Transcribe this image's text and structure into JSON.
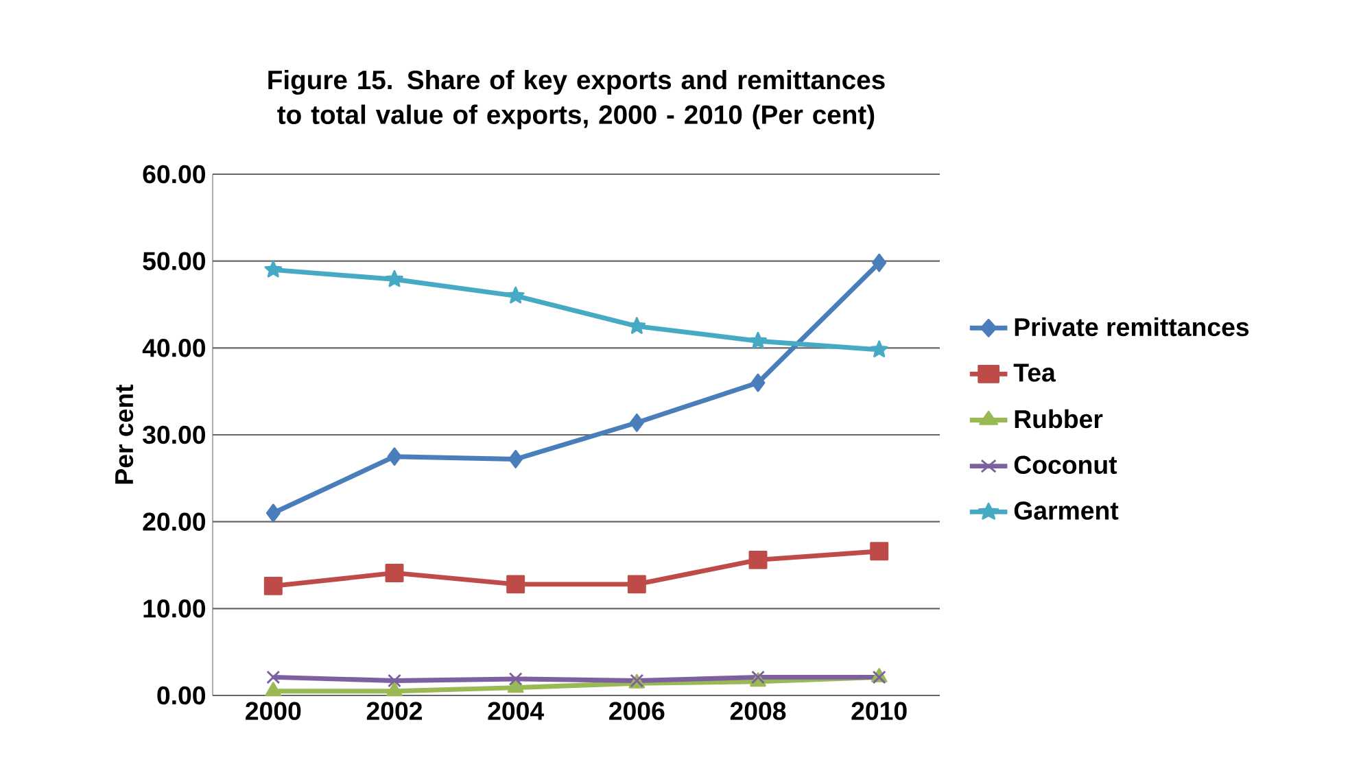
{
  "chart_data": {
    "type": "line",
    "title": "Figure 15. Share of key exports and remittances to total value of exports, 2000 - 2010 (Per cent)",
    "ylabel": "Per cent",
    "categories": [
      "2000",
      "2002",
      "2004",
      "2006",
      "2008",
      "2010"
    ],
    "series": [
      {
        "name": "Private remittances",
        "color": "#4a7ebb",
        "marker": "diamond",
        "values": [
          21.0,
          27.5,
          27.2,
          31.4,
          36.0,
          49.8
        ]
      },
      {
        "name": "Tea",
        "color": "#be4b48",
        "marker": "square",
        "values": [
          12.6,
          14.1,
          12.8,
          12.8,
          15.6,
          16.6
        ]
      },
      {
        "name": "Rubber",
        "color": "#98b954",
        "marker": "triangle",
        "values": [
          0.5,
          0.5,
          0.9,
          1.4,
          1.6,
          2.1
        ]
      },
      {
        "name": "Coconut",
        "color": "#7d60a0",
        "marker": "cross",
        "values": [
          2.1,
          1.7,
          1.9,
          1.7,
          2.1,
          2.1
        ]
      },
      {
        "name": "Garment",
        "color": "#46aac5",
        "marker": "star",
        "values": [
          49.0,
          47.9,
          46.0,
          42.5,
          40.8,
          39.8
        ]
      }
    ],
    "ylim": [
      0,
      60
    ],
    "yticks": [
      {
        "value": 0,
        "label": "0.00"
      },
      {
        "value": 10,
        "label": "10.00"
      },
      {
        "value": 20,
        "label": "20.00"
      },
      {
        "value": 30,
        "label": "30.00"
      },
      {
        "value": 40,
        "label": "40.00"
      },
      {
        "value": 50,
        "label": "50.00"
      },
      {
        "value": 60,
        "label": "60.00"
      }
    ],
    "grid": "y",
    "legend": "right"
  }
}
